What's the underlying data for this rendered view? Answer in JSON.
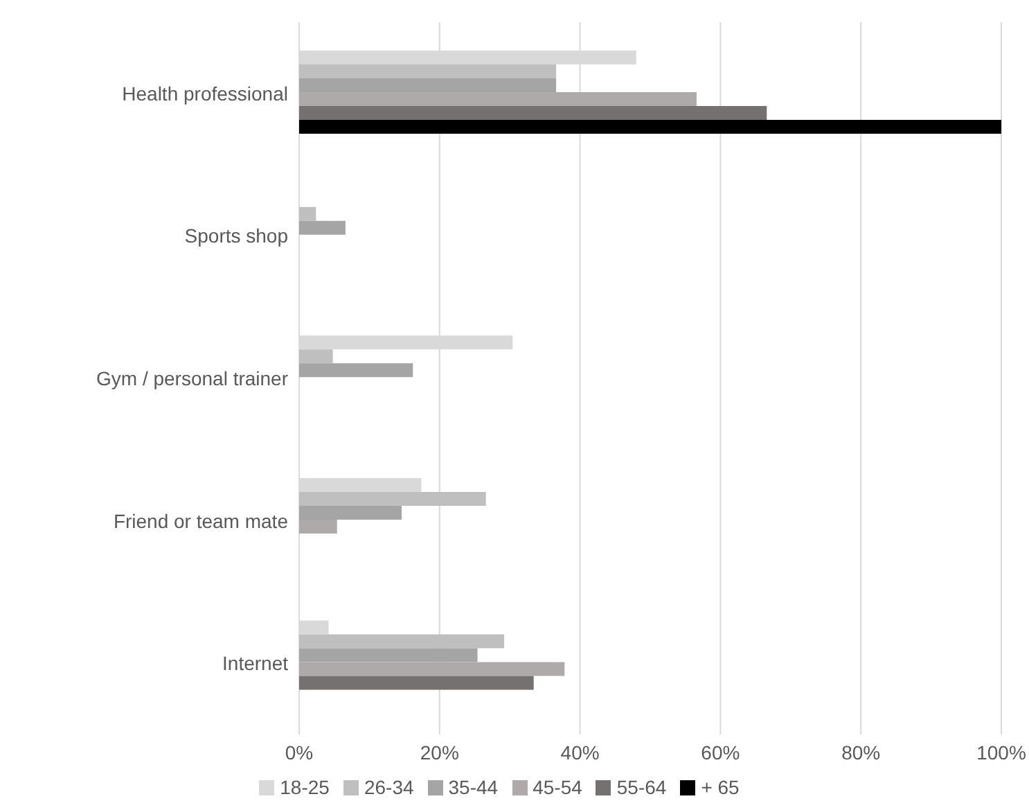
{
  "chart_data": {
    "type": "bar",
    "orientation": "horizontal",
    "categories": [
      "Health professional",
      "Sports shop",
      "Gym / personal trainer",
      "Friend or team mate",
      "Internet"
    ],
    "series": [
      {
        "name": "18-25",
        "color": "#d9d9d9",
        "values": [
          48,
          0,
          30.4,
          17.4,
          4.2
        ]
      },
      {
        "name": "26-34",
        "color": "#bfbfbf",
        "values": [
          36.6,
          2.4,
          4.8,
          26.6,
          29.2
        ]
      },
      {
        "name": "35-44",
        "color": "#a5a5a5",
        "values": [
          36.6,
          6.6,
          16.2,
          14.6,
          25.4
        ]
      },
      {
        "name": "45-54",
        "color": "#aeaaaa",
        "values": [
          56.6,
          0,
          0,
          5.4,
          37.8
        ]
      },
      {
        "name": "55-64",
        "color": "#767171",
        "values": [
          66.6,
          0,
          0,
          0,
          33.4
        ]
      },
      {
        "name": "+ 65",
        "color": "#000000",
        "values": [
          100,
          0,
          0,
          0,
          0
        ]
      }
    ],
    "xlim": [
      0,
      100
    ],
    "xticks": [
      {
        "value": 0,
        "label": "0%"
      },
      {
        "value": 20,
        "label": "20%"
      },
      {
        "value": 40,
        "label": "40%"
      },
      {
        "value": 60,
        "label": "60%"
      },
      {
        "value": 80,
        "label": "80%"
      },
      {
        "value": 100,
        "label": "100%"
      }
    ],
    "grid": "x",
    "legend": "bottom"
  }
}
